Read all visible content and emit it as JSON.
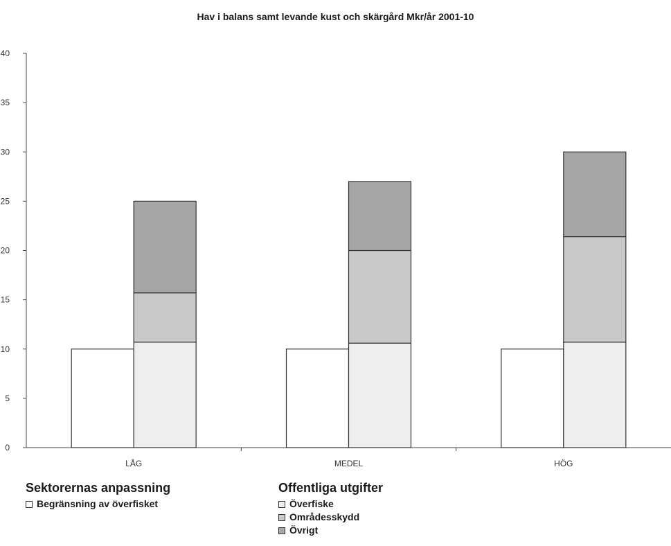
{
  "chart_data": {
    "type": "bar",
    "title": "Hav i balans samt levande kust och skärgård Mkr/år 2001-10",
    "xlabel": "",
    "ylabel": "",
    "ylim": [
      0,
      40
    ],
    "yticks": [
      0,
      5,
      10,
      15,
      20,
      25,
      30,
      35,
      40
    ],
    "ytick_labels": [
      "0",
      "5",
      "10",
      "15",
      "20",
      "25",
      "30",
      "35",
      "40"
    ],
    "categories": [
      "LÅG",
      "MEDEL",
      "HÖG"
    ],
    "grid": false,
    "legend_position": "bottom",
    "series": [
      {
        "name": "Begränsning av överfisket",
        "group": "Sektorernas anpassning",
        "stack": "sector",
        "color": "#ffffff",
        "values": [
          10,
          10,
          10
        ]
      },
      {
        "name": "Överfiske",
        "group": "Offentliga utgifter",
        "stack": "public",
        "color": "#eeeeee",
        "values": [
          10.7,
          10.6,
          10.7
        ]
      },
      {
        "name": "Områdesskydd",
        "group": "Offentliga utgifter",
        "stack": "public",
        "color": "#c9c9c9",
        "values": [
          5,
          9.4,
          10.7
        ]
      },
      {
        "name": "Övrigt",
        "group": "Offentliga utgifter",
        "stack": "public",
        "color": "#a6a6a6",
        "values": [
          9.3,
          7,
          8.6
        ]
      }
    ]
  },
  "legend": {
    "groups": [
      {
        "title": "Sektorernas anpassning",
        "items": [
          {
            "label": "Begränsning av överfisket",
            "color": "#ffffff"
          }
        ]
      },
      {
        "title": "Offentliga utgifter",
        "items": [
          {
            "label": "Överfiske",
            "color": "#eeeeee"
          },
          {
            "label": "Områdesskydd",
            "color": "#c9c9c9"
          },
          {
            "label": "Övrigt",
            "color": "#a6a6a6"
          }
        ]
      }
    ]
  }
}
